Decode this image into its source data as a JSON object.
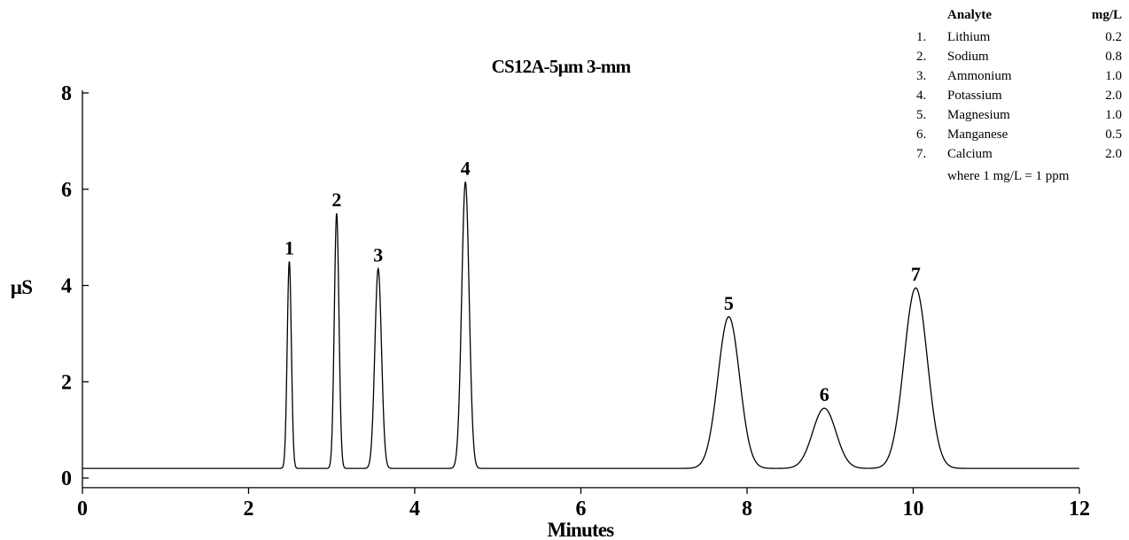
{
  "chart_data": {
    "type": "line",
    "title": "CS12A-5µm 3-mm",
    "xlabel": "Minutes",
    "ylabel": "µS",
    "xlim": [
      0,
      12
    ],
    "ylim": [
      -0.2,
      8
    ],
    "x_ticks": [
      0,
      2,
      4,
      6,
      8,
      10,
      12
    ],
    "y_ticks": [
      0,
      2,
      4,
      6,
      8
    ],
    "baseline": 0.2,
    "grid": false,
    "legend_position": "top-right",
    "series": [
      {
        "color": "#000000",
        "peaks": [
          {
            "label": "1",
            "time": 2.49,
            "height": 4.5,
            "width": 0.025
          },
          {
            "label": "2",
            "time": 3.06,
            "height": 5.5,
            "width": 0.028
          },
          {
            "label": "3",
            "time": 3.56,
            "height": 4.35,
            "width": 0.04
          },
          {
            "label": "4",
            "time": 4.61,
            "height": 6.15,
            "width": 0.045
          },
          {
            "label": "5",
            "time": 7.78,
            "height": 3.35,
            "width": 0.13
          },
          {
            "label": "6",
            "time": 8.93,
            "height": 1.45,
            "width": 0.14
          },
          {
            "label": "7",
            "time": 10.03,
            "height": 3.95,
            "width": 0.14
          }
        ]
      }
    ]
  },
  "analyte_table": {
    "header_name": "Analyte",
    "header_unit": "mg/L",
    "rows": [
      {
        "num": "1.",
        "name": "Lithium",
        "value": "0.2"
      },
      {
        "num": "2.",
        "name": "Sodium",
        "value": "0.8"
      },
      {
        "num": "3.",
        "name": "Ammonium",
        "value": "1.0"
      },
      {
        "num": "4.",
        "name": "Potassium",
        "value": "2.0"
      },
      {
        "num": "5.",
        "name": "Magnesium",
        "value": "1.0"
      },
      {
        "num": "6.",
        "name": "Manganese",
        "value": "0.5"
      },
      {
        "num": "7.",
        "name": "Calcium",
        "value": "2.0"
      }
    ],
    "footnote": "where 1 mg/L = 1 ppm"
  }
}
